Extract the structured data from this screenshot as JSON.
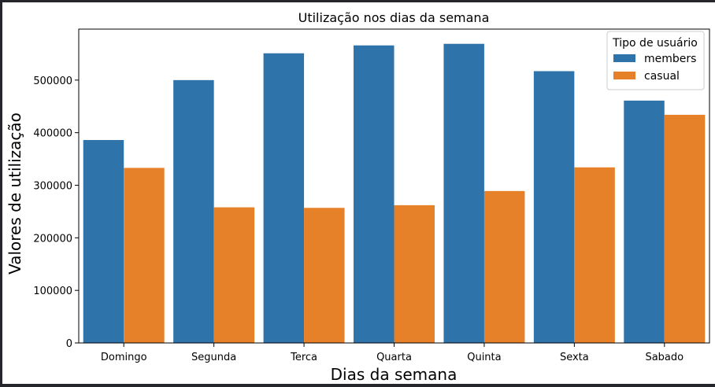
{
  "chart_data": {
    "type": "bar",
    "title": "Utilização nos dias da semana",
    "xlabel": "Dias da semana",
    "ylabel": "Valores de utilização",
    "categories": [
      "Domingo",
      "Segunda",
      "Terca",
      "Quarta",
      "Quinta",
      "Sexta",
      "Sabado"
    ],
    "series": [
      {
        "name": "members",
        "color": "#2f73ab",
        "values": [
          386000,
          500000,
          551000,
          566000,
          569000,
          517000,
          461000
        ]
      },
      {
        "name": "casual",
        "color": "#e6812a",
        "values": [
          333000,
          258000,
          257000,
          262000,
          289000,
          334000,
          434000
        ]
      }
    ],
    "ylim": [
      0,
      597000
    ],
    "yticks": [
      0,
      100000,
      200000,
      300000,
      400000,
      500000
    ],
    "legend": {
      "title": "Tipo de usuário",
      "position": "top-right"
    },
    "grid": false
  }
}
